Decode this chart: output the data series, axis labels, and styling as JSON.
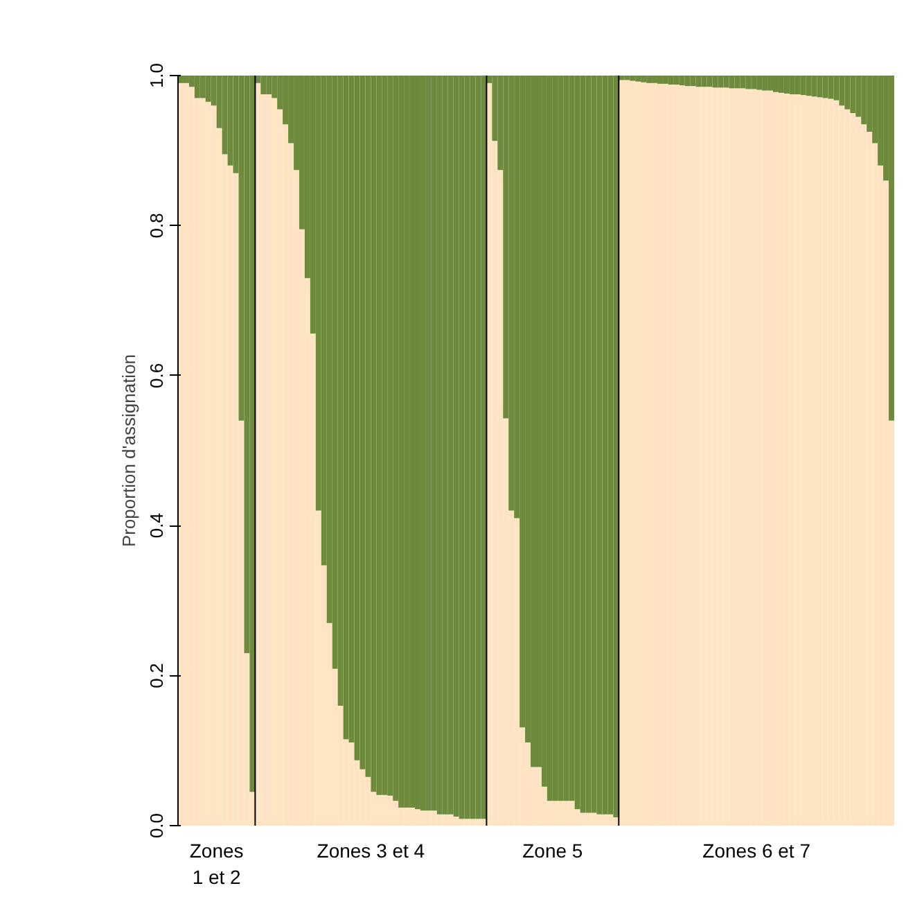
{
  "chart_data": {
    "type": "bar",
    "stacked": true,
    "ylabel": "Proportion d'assignation",
    "categories": [
      null,
      null,
      null,
      null,
      null,
      null,
      null,
      null,
      null,
      null,
      null,
      null,
      null,
      null,
      null,
      null,
      null,
      null,
      null,
      null,
      null,
      null,
      null,
      null,
      null,
      null,
      null,
      null,
      null,
      null,
      null,
      null,
      null,
      null,
      null,
      null,
      null,
      null,
      null,
      null,
      null,
      null,
      null,
      null,
      null,
      null,
      null,
      null,
      null,
      null,
      null,
      null,
      null,
      null,
      null,
      null,
      null,
      null,
      null,
      null,
      null,
      null,
      null,
      null,
      null,
      null,
      null,
      null,
      null,
      null,
      null,
      null,
      null,
      null,
      null,
      null,
      null,
      null,
      null,
      null,
      null,
      null,
      null,
      null,
      null,
      null,
      null,
      null,
      null,
      null,
      null,
      null,
      null,
      null,
      null,
      null,
      null,
      null,
      null,
      null,
      null,
      null,
      null,
      null,
      null,
      null,
      null,
      null,
      null,
      null,
      null,
      null,
      null,
      null,
      null,
      null,
      null,
      null,
      null,
      null,
      null,
      null,
      null,
      null,
      null,
      null,
      null,
      null,
      null,
      null
    ],
    "series": [
      {
        "color": "#ffe4c4",
        "values": [
          0.99,
          0.99,
          0.985,
          0.97,
          0.97,
          0.965,
          0.96,
          0.93,
          0.895,
          0.88,
          0.87,
          0.54,
          0.23,
          0.045,
          0.99,
          0.975,
          0.975,
          0.97,
          0.955,
          0.935,
          0.91,
          0.874,
          0.795,
          0.73,
          0.656,
          0.42,
          0.347,
          0.27,
          0.209,
          0.16,
          0.115,
          0.111,
          0.087,
          0.075,
          0.065,
          0.045,
          0.041,
          0.041,
          0.04,
          0.033,
          0.024,
          0.024,
          0.024,
          0.022,
          0.02,
          0.02,
          0.02,
          0.015,
          0.015,
          0.015,
          0.012,
          0.009,
          0.009,
          0.009,
          0.009,
          0.009,
          0.99,
          0.913,
          0.874,
          0.543,
          0.42,
          0.41,
          0.131,
          0.111,
          0.078,
          0.078,
          0.052,
          0.033,
          0.033,
          0.033,
          0.033,
          0.033,
          0.022,
          0.017,
          0.017,
          0.017,
          0.015,
          0.015,
          0.015,
          0.011,
          0.994,
          0.994,
          0.993,
          0.992,
          0.991,
          0.99,
          0.99,
          0.989,
          0.989,
          0.988,
          0.988,
          0.987,
          0.986,
          0.986,
          0.985,
          0.985,
          0.985,
          0.984,
          0.984,
          0.984,
          0.983,
          0.983,
          0.983,
          0.982,
          0.982,
          0.981,
          0.98,
          0.98,
          0.978,
          0.977,
          0.976,
          0.975,
          0.975,
          0.974,
          0.973,
          0.972,
          0.971,
          0.97,
          0.969,
          0.967,
          0.96,
          0.955,
          0.95,
          0.945,
          0.935,
          0.925,
          0.91,
          0.88,
          0.86,
          0.54
        ]
      },
      {
        "color": "#6e8b3d",
        "values": [
          0.01,
          0.01,
          0.015,
          0.03,
          0.03,
          0.035,
          0.04,
          0.07,
          0.105,
          0.12,
          0.13,
          0.46,
          0.77,
          0.955,
          0.01,
          0.025,
          0.025,
          0.03,
          0.045,
          0.065,
          0.09,
          0.126,
          0.205,
          0.27,
          0.344,
          0.58,
          0.653,
          0.73,
          0.791,
          0.84,
          0.885,
          0.889,
          0.913,
          0.925,
          0.935,
          0.955,
          0.959,
          0.959,
          0.96,
          0.967,
          0.976,
          0.976,
          0.976,
          0.978,
          0.98,
          0.98,
          0.98,
          0.985,
          0.985,
          0.985,
          0.988,
          0.991,
          0.991,
          0.991,
          0.991,
          0.991,
          0.01,
          0.087,
          0.126,
          0.457,
          0.58,
          0.59,
          0.869,
          0.889,
          0.922,
          0.922,
          0.948,
          0.967,
          0.967,
          0.967,
          0.967,
          0.967,
          0.978,
          0.983,
          0.983,
          0.983,
          0.985,
          0.985,
          0.985,
          0.989,
          0.006,
          0.006,
          0.007,
          0.008,
          0.009,
          0.01,
          0.01,
          0.011,
          0.011,
          0.012,
          0.012,
          0.013,
          0.014,
          0.014,
          0.015,
          0.015,
          0.015,
          0.016,
          0.016,
          0.016,
          0.017,
          0.017,
          0.017,
          0.018,
          0.018,
          0.019,
          0.02,
          0.02,
          0.022,
          0.023,
          0.024,
          0.025,
          0.025,
          0.026,
          0.027,
          0.028,
          0.029,
          0.03,
          0.031,
          0.033,
          0.04,
          0.045,
          0.05,
          0.055,
          0.065,
          0.075,
          0.09,
          0.12,
          0.14,
          0.46
        ]
      }
    ],
    "ylim": [
      0,
      1
    ],
    "yticks": [
      {
        "value": 0,
        "label": "0.0"
      },
      {
        "value": 0.2,
        "label": "0.2"
      },
      {
        "value": 0.4,
        "label": "0.4"
      },
      {
        "value": 0.6,
        "label": "0.6"
      },
      {
        "value": 0.8,
        "label": "0.8"
      },
      {
        "value": 1,
        "label": "1.0"
      }
    ],
    "tick_labels": "y",
    "grid": false,
    "annotations": [
      "Zones\n1 et 2",
      "Zones 3 et 4",
      "Zone 5",
      "Zones 6 et 7"
    ]
  }
}
